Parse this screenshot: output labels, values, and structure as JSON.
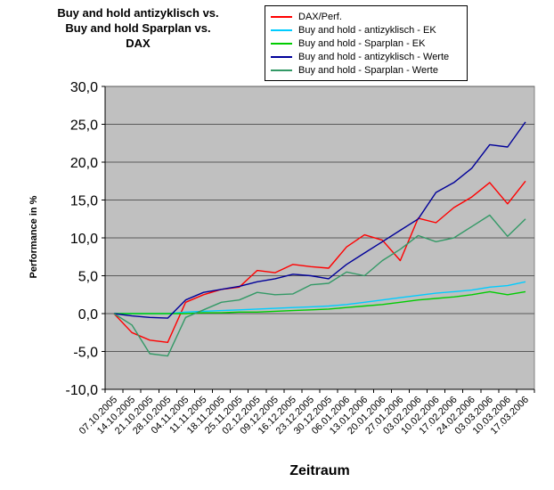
{
  "title": {
    "lines": [
      "Buy and hold antizyklisch vs.",
      "Buy and hold Sparplan vs.",
      "DAX"
    ]
  },
  "chart_data": {
    "type": "line",
    "title": "Buy and hold antizyklisch vs. Buy and hold Sparplan vs. DAX",
    "xlabel": "Zeitraum",
    "ylabel": "Performance in %",
    "ylim": [
      -10,
      30
    ],
    "ytick_step": 5,
    "ytick_labels": [
      "30,0",
      "25,0",
      "20,0",
      "15,0",
      "10,0",
      "5,0",
      "0,0",
      "-5,0",
      "-10,0"
    ],
    "grid": true,
    "legend_position": "top",
    "plot_bg": "#c0c0c0",
    "gridline_color": "#5a5a5a",
    "axis_color": "#000000",
    "categories": [
      "07.10.2005",
      "14.10.2005",
      "21.10.2005",
      "28.10.2005",
      "04.11.2005",
      "11.11.2005",
      "18.11.2005",
      "25.11.2005",
      "02.12.2005",
      "09.12.2005",
      "16.12.2005",
      "23.12.2005",
      "30.12.2005",
      "06.01.2006",
      "13.01.2006",
      "20.01.2006",
      "27.01.2006",
      "03.02.2006",
      "10.02.2006",
      "17.02.2006",
      "24.02.2006",
      "03.03.2006",
      "10.03.2006",
      "17.03.2006"
    ],
    "series": [
      {
        "name": "DAX/Perf.",
        "color": "#ff0000",
        "values": [
          0.0,
          -2.5,
          -3.5,
          -3.8,
          1.5,
          2.5,
          3.2,
          3.5,
          5.7,
          5.4,
          6.5,
          6.2,
          6.0,
          8.8,
          10.4,
          9.7,
          7.0,
          12.6,
          12.0,
          14.0,
          15.4,
          17.3,
          14.5,
          17.5
        ]
      },
      {
        "name": "Buy and hold - antizyklisch - EK",
        "color": "#00ccff",
        "values": [
          0.0,
          0.0,
          0.0,
          0.0,
          0.2,
          0.3,
          0.4,
          0.5,
          0.6,
          0.7,
          0.8,
          0.9,
          1.0,
          1.2,
          1.5,
          1.8,
          2.1,
          2.4,
          2.7,
          2.9,
          3.1,
          3.5,
          3.7,
          4.2
        ]
      },
      {
        "name": "Buy and hold - Sparplan - EK",
        "color": "#00cc00",
        "values": [
          0.0,
          0.0,
          0.0,
          0.0,
          0.0,
          0.1,
          0.1,
          0.2,
          0.2,
          0.3,
          0.4,
          0.5,
          0.6,
          0.8,
          1.0,
          1.2,
          1.5,
          1.8,
          2.0,
          2.2,
          2.5,
          2.9,
          2.5,
          2.9
        ]
      },
      {
        "name": "Buy and hold - antizyklisch - Werte",
        "color": "#000099",
        "values": [
          0.0,
          -0.3,
          -0.5,
          -0.6,
          1.8,
          2.8,
          3.2,
          3.6,
          4.2,
          4.6,
          5.2,
          5.0,
          4.6,
          6.5,
          8.0,
          9.5,
          11.0,
          12.5,
          16.0,
          17.3,
          19.2,
          22.3,
          22.0,
          25.3
        ]
      },
      {
        "name": "Buy and hold - Sparplan - Werte",
        "color": "#339966",
        "values": [
          0.0,
          -1.5,
          -5.3,
          -5.6,
          -0.5,
          0.5,
          1.5,
          1.8,
          2.8,
          2.5,
          2.6,
          3.8,
          4.0,
          5.5,
          5.0,
          7.0,
          8.5,
          10.3,
          9.5,
          10.0,
          11.5,
          13.0,
          10.2,
          12.5
        ]
      }
    ]
  }
}
